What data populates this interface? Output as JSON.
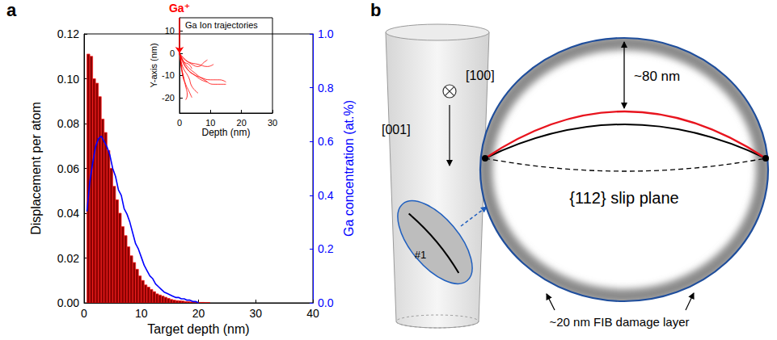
{
  "chart_data": [
    {
      "panel_label": "a",
      "type": "histogram",
      "xlabel": "Target depth (nm)",
      "ylabel": "Displacement per atom",
      "y2label": "Ga concentration (at.%)",
      "xlim": [
        0,
        40
      ],
      "xticks": [
        0,
        10,
        20,
        30,
        40
      ],
      "ylim": [
        0,
        0.12
      ],
      "yticks": [
        {
          "value": 0,
          "label": "0.00"
        },
        {
          "value": 0.02,
          "label": "0.02"
        },
        {
          "value": 0.04,
          "label": "0.04"
        },
        {
          "value": 0.06,
          "label": "0.06"
        },
        {
          "value": 0.08,
          "label": "0.08"
        },
        {
          "value": 0.1,
          "label": "0.10"
        },
        {
          "value": 0.12,
          "label": "0.12"
        }
      ],
      "y2lim": [
        0,
        1
      ],
      "y2ticks": [
        {
          "value": 0,
          "label": "0.0"
        },
        {
          "value": 0.2,
          "label": "0.2"
        },
        {
          "value": 0.4,
          "label": "0.4"
        },
        {
          "value": 0.6,
          "label": "0.6"
        },
        {
          "value": 0.8,
          "label": "0.8"
        },
        {
          "value": 1,
          "label": "1.0"
        }
      ],
      "series": [
        {
          "type": "bar",
          "color": "#8b0000",
          "bins": [
            0.5,
            1,
            1.5,
            2,
            2.5,
            3,
            3.5,
            4,
            4.5,
            5,
            5.5,
            6,
            6.5,
            7,
            7.5,
            8,
            8.5,
            9,
            9.5,
            10,
            10.5,
            11,
            11.5,
            12,
            12.5,
            13,
            13.5,
            14,
            14.5,
            15,
            15.5,
            16,
            16.5,
            17,
            17.5,
            18,
            18.5,
            19,
            19.5,
            20,
            20.5,
            21,
            21.5,
            22
          ],
          "values": [
            0.111,
            0.11,
            0.1,
            0.098,
            0.092,
            0.082,
            0.076,
            0.068,
            0.06,
            0.052,
            0.046,
            0.04,
            0.034,
            0.03,
            0.025,
            0.021,
            0.018,
            0.015,
            0.012,
            0.01,
            0.008,
            0.007,
            0.006,
            0.005,
            0.004,
            0.0035,
            0.003,
            0.0025,
            0.002,
            0.0015,
            0.0012,
            0.001,
            0.0009,
            0.0008,
            0.0006,
            0.0005,
            0.0004,
            0.0003,
            0.0003,
            0.0002,
            0.0002,
            0.0001,
            0.0001
          ]
        },
        {
          "type": "line",
          "axis": "y2",
          "color": "#0000ff",
          "x": [
            0.5,
            1,
            1.5,
            2,
            2.5,
            3,
            3.5,
            4,
            4.5,
            5,
            5.5,
            6,
            6.5,
            7,
            7.5,
            8,
            8.5,
            9,
            9.5,
            10,
            10.5,
            11,
            11.5,
            12,
            12.5,
            13,
            13.5,
            14,
            14.5,
            15,
            15.5,
            16,
            16.5,
            17,
            17.5,
            18,
            18.5,
            19,
            19.5,
            20
          ],
          "values": [
            0.34,
            0.45,
            0.52,
            0.58,
            0.61,
            0.62,
            0.6,
            0.58,
            0.55,
            0.5,
            0.47,
            0.42,
            0.4,
            0.35,
            0.33,
            0.3,
            0.26,
            0.22,
            0.2,
            0.17,
            0.14,
            0.12,
            0.1,
            0.09,
            0.07,
            0.06,
            0.05,
            0.04,
            0.035,
            0.03,
            0.025,
            0.02,
            0.02,
            0.015,
            0.015,
            0.01,
            0.01,
            0.005,
            0.005,
            0
          ]
        }
      ]
    },
    {
      "type": "line",
      "title": "Ga Ion trajectories",
      "xlabel": "Depth (nm)",
      "ylabel": "Y-axis (nm)",
      "xlim": [
        0,
        30
      ],
      "xticks": [
        0,
        10,
        20,
        30
      ],
      "ylim": [
        -27,
        16
      ],
      "yticks": [
        -20,
        -10,
        0,
        10
      ],
      "color": "#ff0000",
      "annotations": [
        {
          "text": "Ga⁺",
          "x": 0,
          "y": 16,
          "color": "#ff0000"
        }
      ],
      "series": [
        {
          "x": [
            0,
            1,
            2,
            4,
            7,
            10,
            13,
            15
          ],
          "values": [
            0,
            -3,
            -6,
            -9,
            -11,
            -12,
            -12,
            -13
          ]
        },
        {
          "x": [
            0,
            0.5,
            1,
            2,
            3,
            4
          ],
          "values": [
            0,
            -4,
            -9,
            -14,
            -17,
            -20
          ]
        },
        {
          "x": [
            0,
            2,
            4,
            6,
            8,
            9
          ],
          "values": [
            0,
            -3,
            -5,
            -6,
            -4,
            -3
          ]
        },
        {
          "x": [
            0,
            1,
            3,
            6,
            9,
            11
          ],
          "values": [
            0,
            -2,
            -4,
            -5,
            -6,
            -5
          ]
        },
        {
          "x": [
            0,
            0.5,
            1,
            2,
            2.5,
            2
          ],
          "values": [
            0,
            -5,
            -10,
            -15,
            -19,
            -21
          ]
        },
        {
          "x": [
            0,
            1,
            3,
            5,
            7,
            9
          ],
          "values": [
            0,
            -4,
            -8,
            -10,
            -12,
            -13
          ]
        },
        {
          "x": [
            0,
            0.3,
            0.5,
            1,
            1.5
          ],
          "values": [
            0,
            -3,
            -6,
            -9,
            -12
          ]
        },
        {
          "x": [
            0,
            2,
            5,
            8,
            11,
            15
          ],
          "values": [
            0,
            -5,
            -9,
            -12,
            -14,
            -14
          ]
        },
        {
          "x": [
            0,
            1,
            3,
            4,
            6
          ],
          "values": [
            0,
            -6,
            -11,
            -15,
            -18
          ]
        },
        {
          "x": [
            0,
            0.5,
            1.5,
            3,
            4
          ],
          "values": [
            0,
            -2,
            -4,
            -5,
            -7
          ]
        }
      ]
    }
  ],
  "diagram": {
    "panel_label": "b",
    "pillar": {
      "direction_into_page": "[100]",
      "direction_down": "[001]",
      "slip_plane_id": "#1"
    },
    "zoom": {
      "height_label": "~80 nm",
      "plane_label": "{112} slip plane",
      "damage_label": "~20 nm FIB damage layer"
    }
  }
}
